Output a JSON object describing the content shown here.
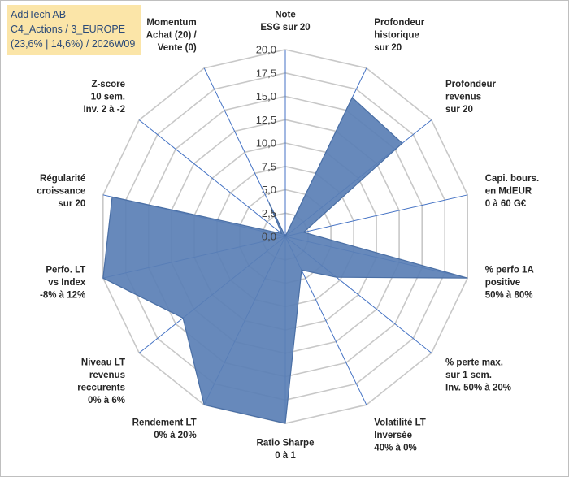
{
  "header": {
    "line1": "AddTech AB",
    "line2": "C4_Actions / 3_EUROPE",
    "line3": "(23,6% | 14,6%) / 2026W09"
  },
  "colors": {
    "fill": "#5a7fb5",
    "stroke": "#4a6fa5",
    "grid": "#c8c8c8",
    "spoke": "#4472c4",
    "title_bg": "#fbe5a8",
    "title_text": "#2b4a78"
  },
  "chart_data": {
    "type": "radar",
    "r_min": 0,
    "r_max": 20,
    "ticks": [
      "0,0",
      "2,5",
      "5,0",
      "7,5",
      "10,0",
      "12,5",
      "15,0",
      "17,5",
      "20,0"
    ],
    "axes": [
      {
        "label": [
          "Note",
          "ESG sur 20"
        ],
        "value": 0
      },
      {
        "label": [
          "Profondeur",
          "historique",
          "sur 20"
        ],
        "value": 16.5
      },
      {
        "label": [
          "Profondeur",
          "revenus",
          "sur 20"
        ],
        "value": 16
      },
      {
        "label": [
          "Capi. bours.",
          "en MdEUR",
          "0 à 60 G€"
        ],
        "value": 2
      },
      {
        "label": [
          "% perfo 1A",
          "positive",
          "50% à 80%"
        ],
        "value": 20
      },
      {
        "label": [
          "% perte max.",
          "sur 1 sem.",
          "Inv. 50% à 20%"
        ],
        "value": 7
      },
      {
        "label": [
          "Volatilité LT",
          "Inversée",
          "40% à 0%"
        ],
        "value": 4
      },
      {
        "label": [
          "Ratio Sharpe",
          "0 à 1"
        ],
        "value": 20
      },
      {
        "label": [
          "Rendement LT",
          "0% à 20%"
        ],
        "value": 20
      },
      {
        "label": [
          "Niveau LT",
          "revenus",
          "reccurents",
          "0% à 6%"
        ],
        "value": 14
      },
      {
        "label": [
          "Perfo. LT",
          "vs Index",
          "-8% à 12%"
        ],
        "value": 20
      },
      {
        "label": [
          "Régularité",
          "croissance",
          "sur 20"
        ],
        "value": 19
      },
      {
        "label": [
          "Z-score",
          "10 sem.",
          "Inv. 2 à -2"
        ],
        "value": 0.5
      },
      {
        "label": [
          "Momentum",
          "Achat (20) /",
          "Vente (0)"
        ],
        "value": 4
      }
    ]
  }
}
